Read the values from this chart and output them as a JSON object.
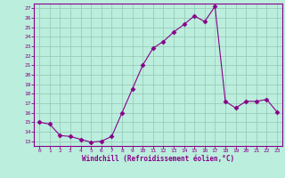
{
  "x": [
    0,
    1,
    2,
    3,
    4,
    5,
    6,
    7,
    8,
    9,
    10,
    11,
    12,
    13,
    14,
    15,
    16,
    17,
    18,
    19,
    20,
    21,
    22,
    23
  ],
  "y": [
    15.0,
    14.8,
    13.6,
    13.5,
    13.2,
    12.9,
    13.0,
    13.5,
    16.0,
    18.5,
    21.0,
    22.8,
    23.5,
    24.5,
    25.3,
    26.2,
    25.6,
    27.2,
    17.2,
    16.5,
    17.2,
    17.2,
    17.4,
    16.1
  ],
  "line_color": "#880088",
  "marker": "D",
  "marker_size": 2.5,
  "bg_color": "#bbeedd",
  "grid_color": "#99ccbb",
  "xlabel": "Windchill (Refroidissement éolien,°C)",
  "ylim": [
    12.5,
    27.5
  ],
  "xlim": [
    -0.5,
    23.5
  ],
  "yticks": [
    13,
    14,
    15,
    16,
    17,
    18,
    19,
    20,
    21,
    22,
    23,
    24,
    25,
    26,
    27
  ],
  "xticks": [
    0,
    1,
    2,
    3,
    4,
    5,
    6,
    7,
    8,
    9,
    10,
    11,
    12,
    13,
    14,
    15,
    16,
    17,
    18,
    19,
    20,
    21,
    22,
    23
  ],
  "tick_color": "#880088",
  "label_color": "#880088"
}
